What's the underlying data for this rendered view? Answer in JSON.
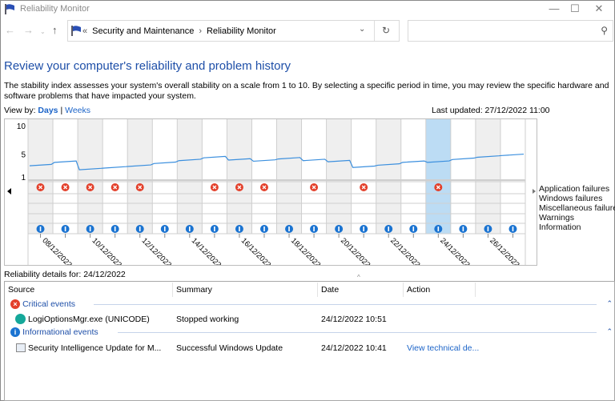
{
  "window": {
    "title": "Reliability Monitor"
  },
  "nav": {
    "breadcrumb": [
      "Security and Maintenance",
      "Reliability Monitor"
    ],
    "search_placeholder": ""
  },
  "heading": "Review your computer's reliability and problem history",
  "description": "The stability index assesses your system's overall stability on a scale from 1 to 10. By selecting a specific period in time, you may review the specific hardware and software problems that have impacted your system.",
  "view_by": {
    "label": "View by:",
    "days": "Days",
    "sep": "|",
    "weeks": "Weeks"
  },
  "last_updated": "Last updated: 27/12/2022 11:00",
  "chart_data": {
    "type": "line",
    "yticks": [
      "10",
      "5",
      "1"
    ],
    "ylim": [
      1,
      10
    ],
    "dates": [
      "08/12/2022",
      "09/12/2022",
      "10/12/2022",
      "11/12/2022",
      "12/12/2022",
      "13/12/2022",
      "14/12/2022",
      "15/12/2022",
      "16/12/2022",
      "17/12/2022",
      "18/12/2022",
      "19/12/2022",
      "20/12/2022",
      "21/12/2022",
      "22/12/2022",
      "23/12/2022",
      "24/12/2022",
      "25/12/2022",
      "26/12/2022",
      "27/12/2022"
    ],
    "date_labels": [
      "08/12/2022",
      "10/12/2022",
      "12/12/2022",
      "14/12/2022",
      "16/12/2022",
      "18/12/2022",
      "20/12/2022",
      "22/12/2022",
      "24/12/2022",
      "26/12/2022"
    ],
    "stability_index": [
      3.2,
      3.8,
      2.5,
      2.8,
      3.1,
      3.6,
      4.1,
      4.6,
      4.2,
      4.0,
      4.4,
      4.1,
      3.9,
      2.9,
      3.3,
      3.8,
      3.8,
      4.3,
      4.7,
      5.0
    ],
    "application_failures": [
      1,
      1,
      1,
      1,
      1,
      0,
      0,
      1,
      1,
      1,
      0,
      1,
      0,
      1,
      0,
      0,
      1,
      0,
      0,
      0
    ],
    "information": [
      1,
      1,
      1,
      1,
      1,
      1,
      1,
      1,
      1,
      1,
      1,
      1,
      1,
      1,
      1,
      1,
      1,
      1,
      1,
      1
    ],
    "selected": "24/12/2022",
    "legend": [
      "Application failures",
      "Windows failures",
      "Miscellaneous failures",
      "Warnings",
      "Information"
    ],
    "colors": {
      "line": "#3b8fde",
      "selected": "#bcdcf4",
      "shade": "#efefef",
      "critical": "#e3402b",
      "info": "#1a73d1"
    }
  },
  "details": {
    "label": "Reliability details for: 24/12/2022",
    "columns": [
      "Source",
      "Summary",
      "Date",
      "Action"
    ],
    "groups": [
      {
        "title": "Critical events",
        "icon": "error-icon",
        "rows": [
          {
            "source": "LogiOptionsMgr.exe (UNICODE)",
            "summary": "Stopped working",
            "date": "24/12/2022 10:51",
            "action": ""
          }
        ]
      },
      {
        "title": "Informational events",
        "icon": "info-icon",
        "rows": [
          {
            "source": "Security Intelligence Update for M...",
            "summary": "Successful Windows Update",
            "date": "24/12/2022 10:41",
            "action": "View technical de..."
          }
        ]
      }
    ]
  }
}
